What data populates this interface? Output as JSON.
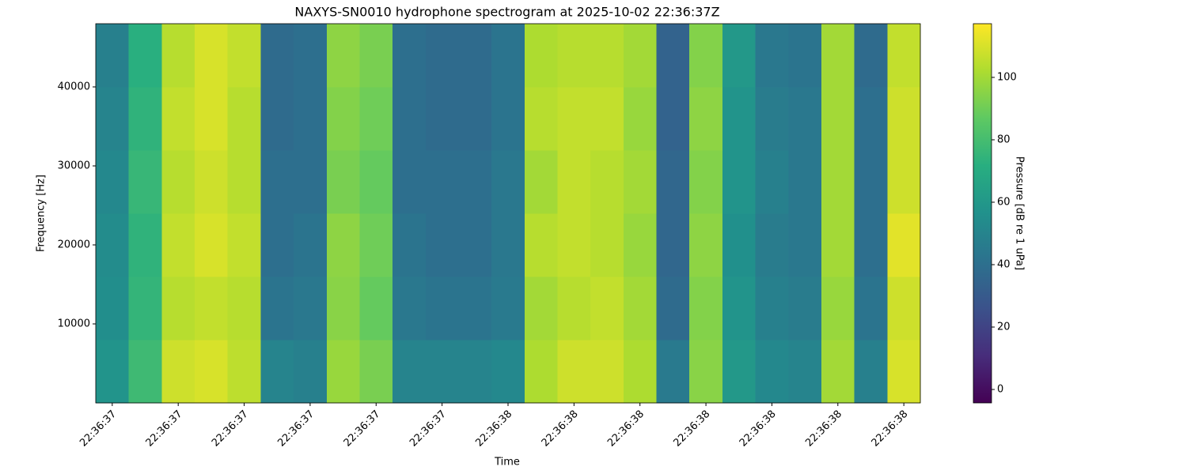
{
  "chart_data": {
    "type": "heatmap",
    "title": "NAXYS-SN0010 hydrophone spectrogram at 2025-10-02 22:36:37Z",
    "xlabel": "Time",
    "ylabel": "Frequency [Hz]",
    "colorbar_label": "Pressure [dB re 1 uPa]",
    "colormap": "viridis",
    "x": [
      81397.4,
      81397.45,
      81397.5,
      81397.55,
      81397.6,
      81397.65,
      81397.7,
      81397.75,
      81397.8,
      81397.85,
      81397.9,
      81397.95,
      81398.0,
      81398.05,
      81398.1,
      81398.15,
      81398.2,
      81398.25,
      81398.3,
      81398.35,
      81398.4,
      81398.45,
      81398.5,
      81398.55,
      81398.6
    ],
    "y": [
      4000,
      12000,
      20000,
      28000,
      36000,
      44000
    ],
    "z": [
      [
        58,
        78,
        108,
        110,
        105,
        50,
        48,
        98,
        92,
        50,
        50,
        50,
        52,
        102,
        108,
        108,
        102,
        45,
        95,
        60,
        52,
        50,
        100,
        48,
        110
      ],
      [
        55,
        75,
        104,
        106,
        104,
        42,
        44,
        95,
        88,
        44,
        42,
        42,
        45,
        100,
        104,
        106,
        100,
        38,
        94,
        58,
        48,
        46,
        98,
        42,
        108
      ],
      [
        54,
        74,
        106,
        110,
        106,
        40,
        42,
        96,
        90,
        42,
        40,
        40,
        44,
        104,
        106,
        104,
        98,
        36,
        96,
        56,
        46,
        44,
        100,
        40,
        112
      ],
      [
        52,
        76,
        104,
        108,
        104,
        40,
        40,
        92,
        88,
        40,
        40,
        40,
        44,
        100,
        106,
        104,
        100,
        36,
        94,
        58,
        48,
        44,
        100,
        40,
        108
      ],
      [
        50,
        74,
        106,
        110,
        104,
        38,
        40,
        94,
        90,
        40,
        38,
        38,
        42,
        104,
        106,
        106,
        98,
        34,
        96,
        58,
        46,
        44,
        100,
        40,
        108
      ],
      [
        48,
        72,
        104,
        110,
        106,
        38,
        40,
        96,
        92,
        40,
        38,
        38,
        42,
        102,
        104,
        104,
        100,
        34,
        94,
        60,
        44,
        42,
        100,
        38,
        106
      ]
    ],
    "xlim": [
      81397.375,
      81398.625
    ],
    "xticks": [
      {
        "value": 81397.4,
        "label": "22:36:37"
      },
      {
        "value": 81397.5,
        "label": "22:36:37"
      },
      {
        "value": 81397.6,
        "label": "22:36:37"
      },
      {
        "value": 81397.7,
        "label": "22:36:37"
      },
      {
        "value": 81397.8,
        "label": "22:36:37"
      },
      {
        "value": 81397.9,
        "label": "22:36:37"
      },
      {
        "value": 81398.0,
        "label": "22:36:38"
      },
      {
        "value": 81398.1,
        "label": "22:36:38"
      },
      {
        "value": 81398.2,
        "label": "22:36:38"
      },
      {
        "value": 81398.3,
        "label": "22:36:38"
      },
      {
        "value": 81398.4,
        "label": "22:36:38"
      },
      {
        "value": 81398.5,
        "label": "22:36:38"
      },
      {
        "value": 81398.6,
        "label": "22:36:38"
      }
    ],
    "ylim": [
      0,
      48000
    ],
    "yticks": [
      10000,
      20000,
      30000,
      40000
    ],
    "clim": [
      -4.3,
      117.2
    ],
    "cticks": [
      0,
      20,
      40,
      60,
      80,
      100
    ]
  }
}
